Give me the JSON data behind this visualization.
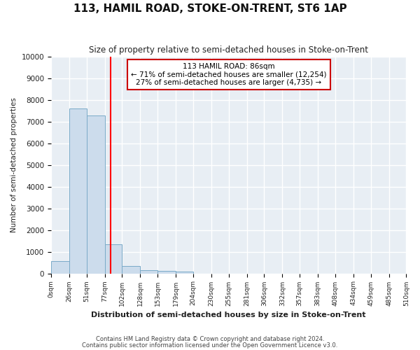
{
  "title": "113, HAMIL ROAD, STOKE-ON-TRENT, ST6 1AP",
  "subtitle": "Size of property relative to semi-detached houses in Stoke-on-Trent",
  "xlabel": "Distribution of semi-detached houses by size in Stoke-on-Trent",
  "ylabel": "Number of semi-detached properties",
  "bin_edges": [
    0,
    26,
    51,
    77,
    102,
    128,
    153,
    179,
    204,
    230,
    255,
    281,
    306,
    332,
    357,
    383,
    408,
    434,
    459,
    485,
    510
  ],
  "bar_heights": [
    560,
    7600,
    7280,
    1340,
    330,
    160,
    105,
    70,
    0,
    0,
    0,
    0,
    0,
    0,
    0,
    0,
    0,
    0,
    0,
    0
  ],
  "bar_color": "#ccdcec",
  "bar_edge_color": "#7aaac8",
  "red_line_x": 86,
  "ylim": [
    0,
    10000
  ],
  "annotation_title": "113 HAMIL ROAD: 86sqm",
  "annotation_line1": "← 71% of semi-detached houses are smaller (12,254)",
  "annotation_line2": "27% of semi-detached houses are larger (4,735) →",
  "annotation_box_color": "#ffffff",
  "annotation_border_color": "#cc0000",
  "footer_line1": "Contains HM Land Registry data © Crown copyright and database right 2024.",
  "footer_line2": "Contains public sector information licensed under the Open Government Licence v3.0.",
  "tick_labels": [
    "0sqm",
    "26sqm",
    "51sqm",
    "77sqm",
    "102sqm",
    "128sqm",
    "153sqm",
    "179sqm",
    "204sqm",
    "230sqm",
    "255sqm",
    "281sqm",
    "306sqm",
    "332sqm",
    "357sqm",
    "383sqm",
    "408sqm",
    "434sqm",
    "459sqm",
    "485sqm",
    "510sqm"
  ],
  "plot_bg_color": "#e8eef4",
  "fig_bg_color": "#ffffff",
  "grid_color": "#ffffff"
}
